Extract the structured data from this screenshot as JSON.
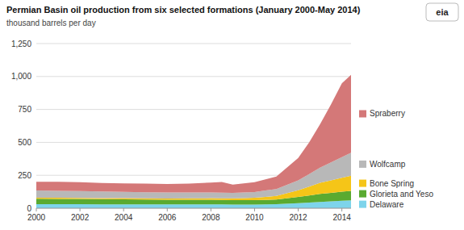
{
  "chart_data": {
    "type": "area",
    "title": "Permian Basin oil production from six selected formations (January 2000-May 2014)",
    "subtitle": "thousand barrels per day",
    "annotations": [
      "eia"
    ],
    "stacked": true,
    "grid": true,
    "legend": "right",
    "x": [
      2000,
      2001,
      2002,
      2003,
      2004,
      2005,
      2006,
      2007,
      2008,
      2008.5,
      2009,
      2009.5,
      2010,
      2010.5,
      2011,
      2012,
      2012.5,
      2013,
      2013.5,
      2014,
      2014.42
    ],
    "xlim": [
      2000,
      2014.42
    ],
    "xticks": [
      2000,
      2002,
      2004,
      2006,
      2008,
      2010,
      2012,
      2014
    ],
    "ylim": [
      0,
      1250
    ],
    "yticks": [
      0,
      250,
      500,
      750,
      {
        "value": 1000,
        "label": "1,000"
      },
      {
        "value": 1250,
        "label": "1,250"
      }
    ],
    "series": [
      {
        "name": "Delaware",
        "color": "#7dd4eb",
        "values": [
          30,
          30,
          30,
          29.5,
          29,
          29,
          29,
          29,
          29,
          28.5,
          28,
          28,
          28,
          29,
          30,
          38,
          43,
          48,
          52.2254,
          56.4507,
          60
        ]
      },
      {
        "name": "Glorieta and Yeso",
        "color": "#5aaa30",
        "values": [
          42,
          41,
          40,
          39.5,
          39,
          37.5,
          36,
          35.5,
          35,
          34,
          33,
          33,
          33,
          34.5,
          36,
          48,
          54,
          60,
          64.2254,
          68.4507,
          72
        ]
      },
      {
        "name": "Bone Spring",
        "color": "#f5c518",
        "values": [
          8,
          8,
          8,
          8,
          8,
          8.5,
          9,
          10.5,
          12,
          13,
          14,
          16,
          18,
          23,
          28,
          50,
          67.5,
          85,
          95.5634,
          106.1268,
          115
        ]
      },
      {
        "name": "Wolfcamp",
        "color": "#b8b8b8",
        "values": [
          55,
          53.5,
          52,
          50,
          48,
          46.5,
          45,
          44.5,
          44,
          43,
          42,
          43,
          44,
          48,
          52,
          75,
          95,
          115,
          136.1268,
          157.2535,
          175
        ]
      },
      {
        "name": "Spraberry",
        "color": "#d47878",
        "values": [
          65,
          68,
          67,
          65,
          65,
          65,
          65,
          67,
          75,
          80,
          62,
          68,
          75,
          85,
          95,
          170,
          240,
          330,
          440,
          560,
          590
        ]
      }
    ]
  }
}
